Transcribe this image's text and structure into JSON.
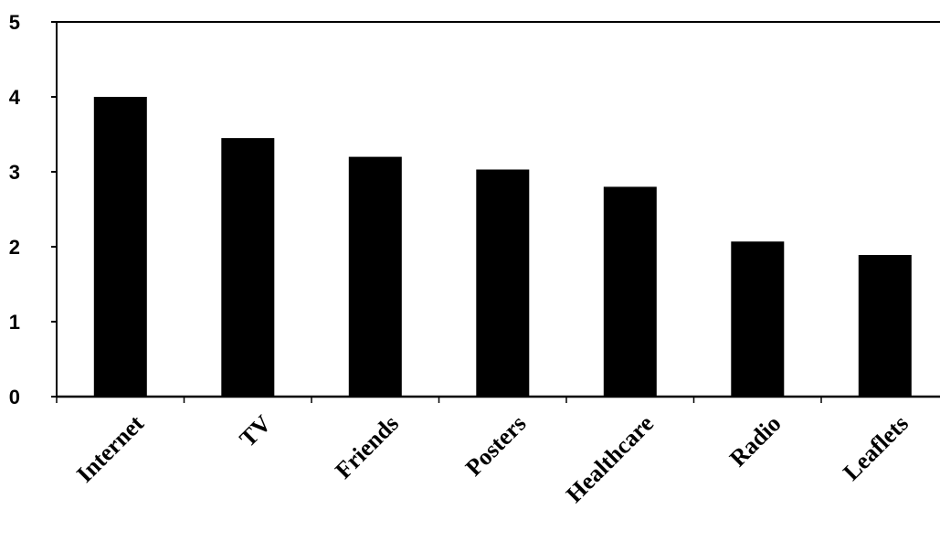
{
  "chart_data": {
    "type": "bar",
    "title": "",
    "xlabel": "",
    "ylabel": "",
    "categories": [
      "Internet",
      "TV",
      "Friends",
      "Posters",
      "Healthcare",
      "Radio",
      "Leaflets"
    ],
    "values": [
      4.0,
      3.45,
      3.2,
      3.03,
      2.8,
      2.07,
      1.89
    ],
    "ylim": [
      0,
      5
    ],
    "yticks": [
      "0",
      "1",
      "2",
      "3",
      "4",
      "5"
    ],
    "grid": false,
    "legend": "none",
    "bar_color": "#000000"
  }
}
